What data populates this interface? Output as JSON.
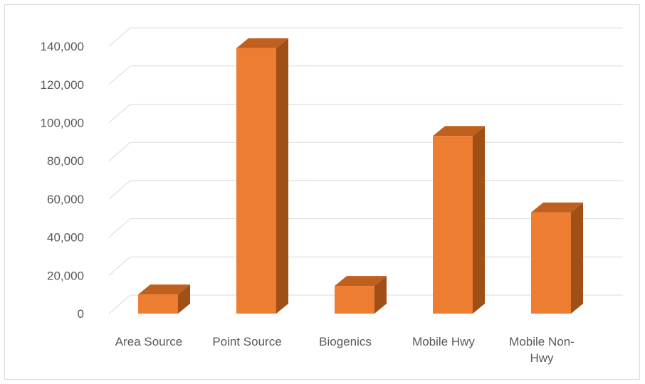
{
  "chart_data": {
    "type": "bar",
    "style": "3d-column",
    "categories": [
      "Area Source",
      "Point Source",
      "Biogenics",
      "Mobile Hwy",
      "Mobile Non-Hwy"
    ],
    "category_lines": [
      [
        "Area Source"
      ],
      [
        "Point Source"
      ],
      [
        "Biogenics"
      ],
      [
        "Mobile Hwy"
      ],
      [
        "Mobile Non-",
        "Hwy"
      ]
    ],
    "values": [
      10000,
      139000,
      14500,
      93000,
      53000
    ],
    "ylim": [
      0,
      140000
    ],
    "yticks": [
      0,
      20000,
      40000,
      60000,
      80000,
      100000,
      120000,
      140000
    ],
    "ytick_labels": [
      "0",
      "20,000",
      "40,000",
      "60,000",
      "80,000",
      "100,000",
      "120,000",
      "140,000"
    ],
    "grid": true,
    "colors": {
      "bar_front": "#ed7d31",
      "bar_side": "#a04f16",
      "bar_top": "#c0601f",
      "grid": "#d9d9d9",
      "text": "#595959"
    }
  }
}
